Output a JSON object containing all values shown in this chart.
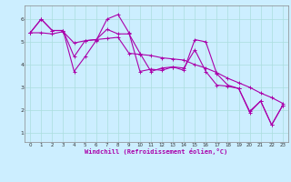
{
  "xlabel": "Windchill (Refroidissement éolien,°C)",
  "bg_color": "#cceeff",
  "line_color": "#aa00aa",
  "grid_color": "#aadddd",
  "xlim": [
    -0.5,
    23.5
  ],
  "ylim": [
    0.6,
    6.6
  ],
  "yticks": [
    1,
    2,
    3,
    4,
    5,
    6
  ],
  "xticks": [
    0,
    1,
    2,
    3,
    4,
    5,
    6,
    7,
    8,
    9,
    10,
    11,
    12,
    13,
    14,
    15,
    16,
    17,
    18,
    19,
    20,
    21,
    22,
    23
  ],
  "series": [
    [
      5.4,
      6.0,
      5.5,
      5.5,
      3.7,
      4.35,
      5.05,
      6.0,
      6.2,
      5.4,
      3.7,
      3.8,
      3.75,
      3.9,
      3.75,
      5.1,
      5.0,
      3.6,
      3.1,
      2.95,
      1.9,
      2.4,
      1.35,
      2.2
    ],
    [
      5.4,
      6.0,
      5.5,
      5.5,
      4.35,
      5.05,
      5.1,
      5.55,
      5.35,
      5.35,
      4.5,
      3.7,
      3.85,
      3.9,
      3.85,
      4.65,
      3.7,
      3.1,
      3.05,
      2.95,
      1.95,
      2.4,
      1.35,
      2.2
    ],
    [
      5.4,
      5.4,
      5.35,
      5.45,
      4.95,
      5.05,
      5.1,
      5.15,
      5.2,
      4.5,
      4.45,
      4.4,
      4.3,
      4.25,
      4.2,
      4.0,
      3.85,
      3.65,
      3.4,
      3.2,
      3.0,
      2.75,
      2.55,
      2.3
    ]
  ]
}
